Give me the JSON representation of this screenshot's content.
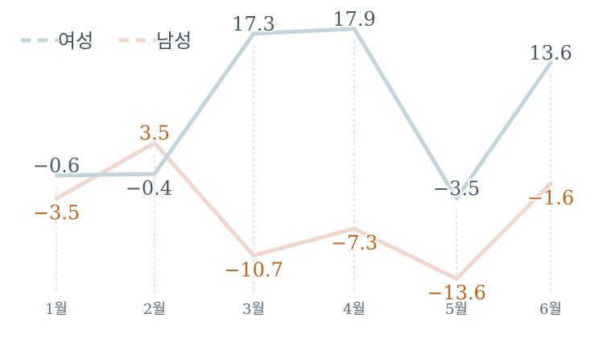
{
  "chart_data": {
    "type": "line",
    "categories": [
      "1월",
      "2월",
      "3월",
      "4월",
      "5월",
      "6월"
    ],
    "series": [
      {
        "name": "여성",
        "values": [
          -0.6,
          -0.4,
          17.3,
          17.9,
          -3.5,
          13.6
        ],
        "labels": [
          "−0.6",
          "−0.4",
          "17.3",
          "17.9",
          "−3.5",
          "13.6"
        ],
        "color": "#c3d5dc",
        "label_color": "#4a5866"
      },
      {
        "name": "남성",
        "values": [
          -3.5,
          3.5,
          -10.7,
          -7.3,
          -13.6,
          -1.6
        ],
        "labels": [
          "−3.5",
          "3.5",
          "−10.7",
          "−7.3",
          "−13.6",
          "−1.6"
        ],
        "color": "#f1d6cd",
        "label_color": "#c0631a"
      }
    ],
    "ylim": [
      -15,
      19
    ],
    "grid": false,
    "legend": "top-left"
  }
}
